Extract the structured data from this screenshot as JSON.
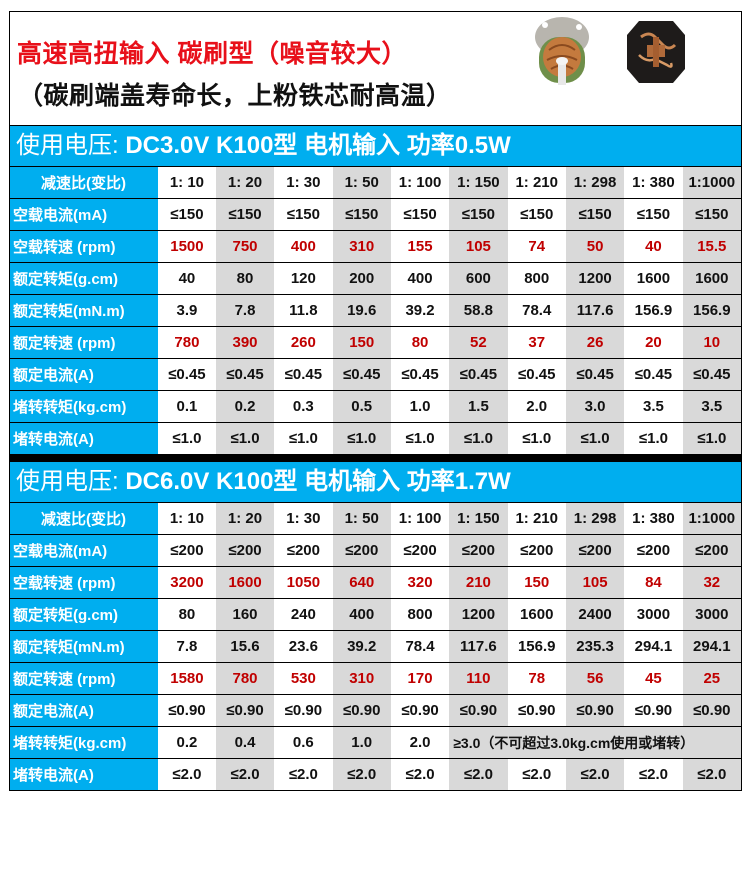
{
  "header": {
    "title_line1": "高速高扭输入 碳刷型（噪音较大）",
    "title_line2": "（碳刷端盖寿命长，上粉铁芯耐高温）",
    "images": [
      "motor-end-cap-photo",
      "carbon-brush-holder-photo"
    ]
  },
  "colors": {
    "accent_blue": "#00aeef",
    "red_value": "#c00000",
    "title_red": "#e8101a",
    "alt_gray": "#d9d9d9"
  },
  "tables": [
    {
      "bar_label": "使用电压:",
      "bar_text": " DC3.0V   K100型 电机输入 功率0.5W",
      "rows": [
        {
          "label": "减速比(变比)",
          "center": true,
          "red": false,
          "values": [
            "1: 10",
            "1: 20",
            "1: 30",
            "1: 50",
            "1: 100",
            "1: 150",
            "1: 210",
            "1: 298",
            "1: 380",
            "1:1000"
          ]
        },
        {
          "label": "空载电流(mA)",
          "red": false,
          "values": [
            "≤150",
            "≤150",
            "≤150",
            "≤150",
            "≤150",
            "≤150",
            "≤150",
            "≤150",
            "≤150",
            "≤150"
          ]
        },
        {
          "label": "空载转速 (rpm)",
          "red": true,
          "values": [
            "1500",
            "750",
            "400",
            "310",
            "155",
            "105",
            "74",
            "50",
            "40",
            "15.5"
          ]
        },
        {
          "label": "额定转矩(g.cm)",
          "red": false,
          "values": [
            "40",
            "80",
            "120",
            "200",
            "400",
            "600",
            "800",
            "1200",
            "1600",
            "1600"
          ]
        },
        {
          "label": "额定转矩(mN.m)",
          "red": false,
          "values": [
            "3.9",
            "7.8",
            "11.8",
            "19.6",
            "39.2",
            "58.8",
            "78.4",
            "117.6",
            "156.9",
            "156.9"
          ]
        },
        {
          "label": "额定转速 (rpm)",
          "red": true,
          "values": [
            "780",
            "390",
            "260",
            "150",
            "80",
            "52",
            "37",
            "26",
            "20",
            "10"
          ]
        },
        {
          "label": "额定电流(A)",
          "red": false,
          "values": [
            "≤0.45",
            "≤0.45",
            "≤0.45",
            "≤0.45",
            "≤0.45",
            "≤0.45",
            "≤0.45",
            "≤0.45",
            "≤0.45",
            "≤0.45"
          ]
        },
        {
          "label": "堵转转矩(kg.cm)",
          "red": false,
          "values": [
            "0.1",
            "0.2",
            "0.3",
            "0.5",
            "1.0",
            "1.5",
            "2.0",
            "3.0",
            "3.5",
            "3.5"
          ]
        },
        {
          "label": "堵转电流(A)",
          "red": false,
          "values": [
            "≤1.0",
            "≤1.0",
            "≤1.0",
            "≤1.0",
            "≤1.0",
            "≤1.0",
            "≤1.0",
            "≤1.0",
            "≤1.0",
            "≤1.0"
          ]
        }
      ]
    },
    {
      "bar_label": "使用电压:",
      "bar_text": " DC6.0V  K100型 电机输入 功率1.7W",
      "rows": [
        {
          "label": "减速比(变比)",
          "center": true,
          "red": false,
          "values": [
            "1: 10",
            "1: 20",
            "1: 30",
            "1: 50",
            "1: 100",
            "1: 150",
            "1: 210",
            "1: 298",
            "1: 380",
            "1:1000"
          ]
        },
        {
          "label": "空载电流(mA)",
          "red": false,
          "values": [
            "≤200",
            "≤200",
            "≤200",
            "≤200",
            "≤200",
            "≤200",
            "≤200",
            "≤200",
            "≤200",
            "≤200"
          ]
        },
        {
          "label": "空载转速 (rpm)",
          "red": true,
          "values": [
            "3200",
            "1600",
            "1050",
            "640",
            "320",
            "210",
            "150",
            "105",
            "84",
            "32"
          ]
        },
        {
          "label": "额定转矩(g.cm)",
          "red": false,
          "values": [
            "80",
            "160",
            "240",
            "400",
            "800",
            "1200",
            "1600",
            "2400",
            "3000",
            "3000"
          ]
        },
        {
          "label": "额定转矩(mN.m)",
          "red": false,
          "values": [
            "7.8",
            "15.6",
            "23.6",
            "39.2",
            "78.4",
            "117.6",
            "156.9",
            "235.3",
            "294.1",
            "294.1"
          ]
        },
        {
          "label": "额定转速 (rpm)",
          "red": true,
          "values": [
            "1580",
            "780",
            "530",
            "310",
            "170",
            "110",
            "78",
            "56",
            "45",
            "25"
          ]
        },
        {
          "label": "额定电流(A)",
          "red": false,
          "values": [
            "≤0.90",
            "≤0.90",
            "≤0.90",
            "≤0.90",
            "≤0.90",
            "≤0.90",
            "≤0.90",
            "≤0.90",
            "≤0.90",
            "≤0.90"
          ]
        },
        {
          "label": "堵转转矩(kg.cm)",
          "red": false,
          "values": [
            "0.2",
            "0.4",
            "0.6",
            "1.0",
            "2.0"
          ],
          "note": "≥3.0（不可超过3.0kg.cm使用或堵转）"
        },
        {
          "label": "堵转电流(A)",
          "red": false,
          "values": [
            "≤2.0",
            "≤2.0",
            "≤2.0",
            "≤2.0",
            "≤2.0",
            "≤2.0",
            "≤2.0",
            "≤2.0",
            "≤2.0",
            "≤2.0"
          ]
        }
      ]
    }
  ]
}
